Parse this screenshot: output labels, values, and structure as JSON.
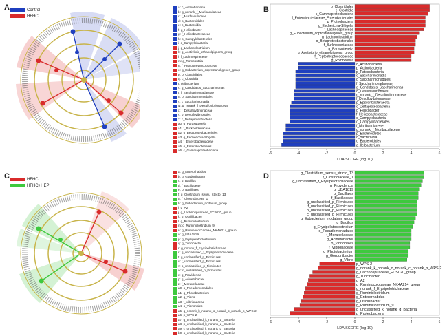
{
  "panels": {
    "A": {
      "label": "A",
      "legend": [
        {
          "name": "Control",
          "color": "#1f3fbf"
        },
        {
          "name": "HFHC",
          "color": "#d92b2b"
        }
      ],
      "key": [
        {
          "t": "a: c_Actinobacteria",
          "g": 0
        },
        {
          "t": "b: g_norank_f_Muribaculaceae",
          "g": 0
        },
        {
          "t": "c: f_Muribaculaceae",
          "g": 0
        },
        {
          "t": "d: o_Bacteroidales",
          "g": 0
        },
        {
          "t": "e: c_Bacteroidia",
          "g": 0
        },
        {
          "t": "f: g_Helicobacter",
          "g": 0
        },
        {
          "t": "g: f_Helicobacteraceae",
          "g": 0
        },
        {
          "t": "h: o_Campylobacterales",
          "g": 0
        },
        {
          "t": "i: c_Campylobacteria",
          "g": 0
        },
        {
          "t": "j: g_Lachnoclostridium",
          "g": 1
        },
        {
          "t": "k: g_Acetivibrio_ethanolgignens_group",
          "g": 1
        },
        {
          "t": "l: f_Lachnospiraceae",
          "g": 1
        },
        {
          "t": "m: g_Romboutsia",
          "g": 1
        },
        {
          "t": "n: f_Peptostreptococcaceae",
          "g": 1
        },
        {
          "t": "o: g_Eubacterium_coprostanoligenes_group",
          "g": 1
        },
        {
          "t": "p: o_Clostridiales",
          "g": 1
        },
        {
          "t": "q: c_Clostridia",
          "g": 1
        },
        {
          "t": "r: Ileibacterium",
          "g": 0
        },
        {
          "t": "s: g_Candidatus_Saccharimonas",
          "g": 0
        },
        {
          "t": "t: f_Saccharimonadaceae",
          "g": 0
        },
        {
          "t": "u: o_Saccharimonadales",
          "g": 0
        },
        {
          "t": "v: c_Saccharimonadia",
          "g": 0
        },
        {
          "t": "w: g_norank_f_Desulfovibrionaceae",
          "g": 0
        },
        {
          "t": "x: f_Desulfovibrionaceae",
          "g": 0
        },
        {
          "t": "y: o_Desulfovibrionales",
          "g": 0
        },
        {
          "t": "z: c_Deltaproteobacteria",
          "g": 0
        },
        {
          "t": "a0: g_Parasutterella",
          "g": 1
        },
        {
          "t": "a1: f_Burkholderiaceae",
          "g": 1
        },
        {
          "t": "a2: o_Betaproteobacteriales",
          "g": 1
        },
        {
          "t": "a3: g_Escherichia-Shigella",
          "g": 1
        },
        {
          "t": "a4: f_Enterobacteriaceae",
          "g": 1
        },
        {
          "t": "a5: o_Enterobacteriales",
          "g": 1
        },
        {
          "t": "a6: c_Gammaproteobacteria",
          "g": 1
        }
      ]
    },
    "B": {
      "label": "B",
      "axis_label": "LDA SCORE (log 10)",
      "ticks": [
        "-6",
        "-4",
        "-2",
        "0",
        "2",
        "4",
        "6"
      ]
    },
    "C": {
      "label": "C",
      "legend": [
        {
          "name": "HFHC",
          "color": "#d92b2b"
        },
        {
          "name": "HFHC+HEP",
          "color": "#3ec93e"
        }
      ],
      "key": [
        {
          "t": "a: g_Enterorhabdus",
          "g": 0
        },
        {
          "t": "b: g_Gordonibacter",
          "g": 0
        },
        {
          "t": "c: g_Bacillus",
          "g": 1
        },
        {
          "t": "d: f_Bacillaceae",
          "g": 1
        },
        {
          "t": "e: o_Bacillales",
          "g": 1
        },
        {
          "t": "f: g_Clostridium_sensu_stricto_13",
          "g": 1
        },
        {
          "t": "g: f_Clostridiaceae_1",
          "g": 1
        },
        {
          "t": "h: g_Eubacterium_nodatum_group",
          "g": 1
        },
        {
          "t": "i: g_A2",
          "g": 0
        },
        {
          "t": "j: g_Lachnospiraceae_FCS020_group",
          "g": 0
        },
        {
          "t": "k: g_Oscillibacter",
          "g": 0
        },
        {
          "t": "l: g_Ruminiclostridium",
          "g": 0
        },
        {
          "t": "m: g_Ruminiclostridium_9",
          "g": 0
        },
        {
          "t": "n: g_Ruminococcaceae_NK4A214_group",
          "g": 0
        },
        {
          "t": "o: g_UBA1819",
          "g": 1
        },
        {
          "t": "p: g_Erysipelatoclostridium",
          "g": 1
        },
        {
          "t": "q: g_Turicibacter",
          "g": 0
        },
        {
          "t": "r: g_norank_f_Erysipelotrichaceae",
          "g": 0
        },
        {
          "t": "s: g_unclassified_f_Erysipelotrichaceae",
          "g": 1
        },
        {
          "t": "t: g_unclassified_p_Firmicutes",
          "g": 1
        },
        {
          "t": "u: f_unclassified_p_Firmicutes",
          "g": 1
        },
        {
          "t": "v: o_unclassified_p_Firmicutes",
          "g": 1
        },
        {
          "t": "w: c_unclassified_p_Firmicutes",
          "g": 1
        },
        {
          "t": "x: g_Providencia",
          "g": 1
        },
        {
          "t": "y: g_Acinetobacter",
          "g": 1
        },
        {
          "t": "z: f_Moraxellaceae",
          "g": 1
        },
        {
          "t": "a0: o_Pseudomonadales",
          "g": 1
        },
        {
          "t": "a1: g_Photobacterium",
          "g": 1
        },
        {
          "t": "a2: g_Vibrio",
          "g": 1
        },
        {
          "t": "a3: f_Vibrionaceae",
          "g": 1
        },
        {
          "t": "a4: o_Vibrionales",
          "g": 1
        },
        {
          "t": "a5: g_norank_k_norank_o_norank_c_norank_p_WPS-2",
          "g": 0
        },
        {
          "t": "a6: p_WPS-2",
          "g": 0
        },
        {
          "t": "a7: g_unclassified_k_norank_d_Bacteria",
          "g": 0
        },
        {
          "t": "a8: p_unclassified_k_norank_d_Bacteria",
          "g": 0
        },
        {
          "t": "a9: c_unclassified_k_norank_d_Bacteria",
          "g": 0
        },
        {
          "t": "b0: o_unclassified_k_norank_d_Bacteria",
          "g": 0
        }
      ]
    },
    "D": {
      "label": "D",
      "axis_label": "LDA SCORE (log 10)",
      "ticks": [
        "-6",
        "-4",
        "-2",
        "0",
        "2",
        "4",
        "6"
      ]
    }
  },
  "chart_data": [
    {
      "type": "bar",
      "title": "",
      "xlabel": "LDA SCORE (log 10)",
      "xlim": [
        -6,
        6
      ],
      "series": [
        {
          "name": "HFHC",
          "color": "#d92b2b",
          "labels": [
            "o_Clostridiales",
            "c_Clostridia",
            "c_Gammaproteobacteria",
            "f_Enterobacteriaceae_Enterobacteriales",
            "p_Proteobacteria",
            "g_Escherichia-Shigella",
            "f_Lachnospiraceae",
            "g_Eubacterium_coprostanoligenes_group",
            "g_Lachnoclostridium",
            "o_Betaproteobacteriales",
            "f_Burkholderiaceae",
            "g_Parasutterella",
            "g_Acetivibrio_ethanolgignens_group",
            "f_Peptostreptococcaceae",
            "g_Romboutsia"
          ],
          "values": [
            5.3,
            5.3,
            5.2,
            5.0,
            5.0,
            5.0,
            4.9,
            4.6,
            4.4,
            4.3,
            4.3,
            4.2,
            4.2,
            4.0,
            4.0
          ]
        },
        {
          "name": "Control",
          "color": "#1f3fbf",
          "labels": [
            "c_Actinobacteria",
            "p_Actinobacteria",
            "p_Patescibacteria",
            "c_Saccharimonadia",
            "o_Saccharimonadales",
            "f_Saccharimonadaceae",
            "g_Candidatus_Saccharimonas",
            "o_Desulfovibrionales",
            "g_norank_f_Desulfovibrionaceae",
            "f_Desulfovibrionaceae",
            "p_Epsilonbacteraeota",
            "c_Deltaproteobacteria",
            "g_Helicobacter",
            "f_Helicobacteraceae",
            "c_Campylobacteria",
            "o_Campylobacterales",
            "f_Muribaculaceae",
            "g_norank_f_Muribaculaceae",
            "p_Bacteroidetes",
            "c_Bacteroidia",
            "o_Bacteroidales",
            "g_Ileibacterium"
          ],
          "values": [
            -4.0,
            -4.0,
            -4.2,
            -4.2,
            -4.2,
            -4.2,
            -4.2,
            -4.3,
            -4.3,
            -4.3,
            -4.5,
            -4.6,
            -4.6,
            -4.6,
            -4.6,
            -4.6,
            -4.9,
            -4.9,
            -5.1,
            -5.1,
            -5.1,
            -5.2
          ]
        }
      ]
    },
    {
      "type": "bar",
      "title": "",
      "xlabel": "LDA SCORE (log 10)",
      "xlim": [
        -6,
        6
      ],
      "series": [
        {
          "name": "HFHC+HEP",
          "color": "#3ec93e",
          "labels": [
            "g_Clostridium_sensu_stricto_13",
            "f_Clostridiaceae_1",
            "g_unclassified_f_Erysipelotrichaceae",
            "g_Providencia",
            "g_UBA1819",
            "o_Bacillales",
            "f_Bacillaceae",
            "g_unclassified_p_Firmicutes",
            "f_unclassified_p_Firmicutes",
            "o_unclassified_p_Firmicutes",
            "c_unclassified_p_Firmicutes",
            "g_Eubacterium_nodatum_group",
            "g_Bacillus",
            "g_Erysipelatoclostridium",
            "o_Pseudomonadales",
            "f_Moraxellaceae",
            "g_Acinetobacter",
            "o_Vibrionales",
            "f_Vibrionaceae",
            "g_Photobacterium",
            "g_Gordonibacter",
            "g_Vibrio"
          ],
          "values": [
            4.9,
            4.9,
            4.8,
            4.7,
            4.6,
            4.5,
            4.5,
            4.4,
            4.4,
            4.4,
            4.4,
            4.3,
            4.2,
            4.1,
            4.0,
            4.0,
            4.0,
            3.9,
            3.9,
            3.8,
            3.8,
            3.7
          ]
        },
        {
          "name": "HFHC",
          "color": "#d92b2b",
          "labels": [
            "p_WPS-2",
            "g_norank_k_norank_o_norank_c_norank_p_WPS-2",
            "g_Lachnospiraceae_FCS020_group",
            "g_Turicibacter",
            "g_A2",
            "g_Ruminococcaceae_NK4A214_group",
            "g_norank_f_Erysipelotrichaceae",
            "g_Ruminiclostridium",
            "g_Enterorhabdus",
            "g_Oscillibacter",
            "g_Ruminiclostridium_9",
            "g_unclassified_k_norank_d_Bacteria",
            "p_Proteobacteria"
          ],
          "values": [
            -2.5,
            -2.6,
            -3.0,
            -3.2,
            -3.3,
            -3.4,
            -3.5,
            -3.6,
            -3.7,
            -3.8,
            -3.9,
            -4.3,
            -4.6
          ]
        }
      ]
    }
  ]
}
